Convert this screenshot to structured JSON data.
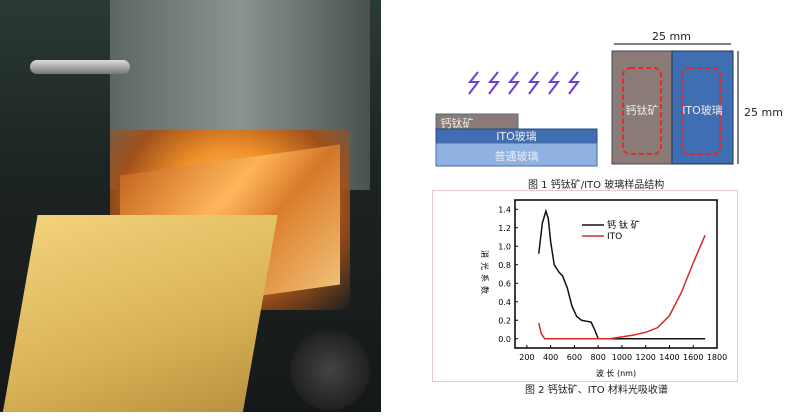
{
  "figure1": {
    "caption": "图 1 钙钛矿/ITO 玻璃样品结构",
    "layers": [
      "钙钛矿",
      "ITO玻璃",
      "普通玻璃"
    ],
    "top_view_labels": [
      "钙钛矿",
      "ITO玻璃"
    ],
    "width_label": "25 mm",
    "height_label": "25 mm",
    "colors": {
      "perovskite": "#8a7b76",
      "ito": "#3f6eb3",
      "glass": "#8fb2e3",
      "dashed": "#e02a2a",
      "light": "#6a3fd6"
    }
  },
  "figure2": {
    "caption": "图 2 钙钛矿、ITO 材料光吸收谱"
  },
  "chart_data": {
    "type": "line",
    "title": "",
    "xlabel": "波 长 (nm)",
    "ylabel": "消光系数",
    "xlim": [
      100,
      1800
    ],
    "ylim": [
      -0.1,
      1.5
    ],
    "xticks": [
      200,
      400,
      600,
      800,
      1000,
      1200,
      1400,
      1600,
      1800
    ],
    "yticks": [
      0.0,
      0.2,
      0.4,
      0.6,
      0.8,
      1.0,
      1.2,
      1.4
    ],
    "legend": "top-center",
    "grid": false,
    "series": [
      {
        "name": "钙 钛 矿",
        "color": "#111111",
        "x": [
          300,
          330,
          360,
          380,
          400,
          430,
          470,
          500,
          540,
          580,
          620,
          660,
          700,
          740,
          770,
          800,
          1700
        ],
        "y": [
          0.92,
          1.25,
          1.38,
          1.3,
          1.05,
          0.8,
          0.72,
          0.68,
          0.55,
          0.35,
          0.24,
          0.2,
          0.19,
          0.18,
          0.1,
          0.0,
          0.0
        ]
      },
      {
        "name": "ITO",
        "color": "#d42a2a",
        "x": [
          300,
          320,
          350,
          900,
          1000,
          1100,
          1200,
          1300,
          1400,
          1500,
          1600,
          1700
        ],
        "y": [
          0.17,
          0.06,
          0.0,
          0.0,
          0.02,
          0.04,
          0.07,
          0.12,
          0.25,
          0.5,
          0.82,
          1.12
        ]
      }
    ]
  }
}
